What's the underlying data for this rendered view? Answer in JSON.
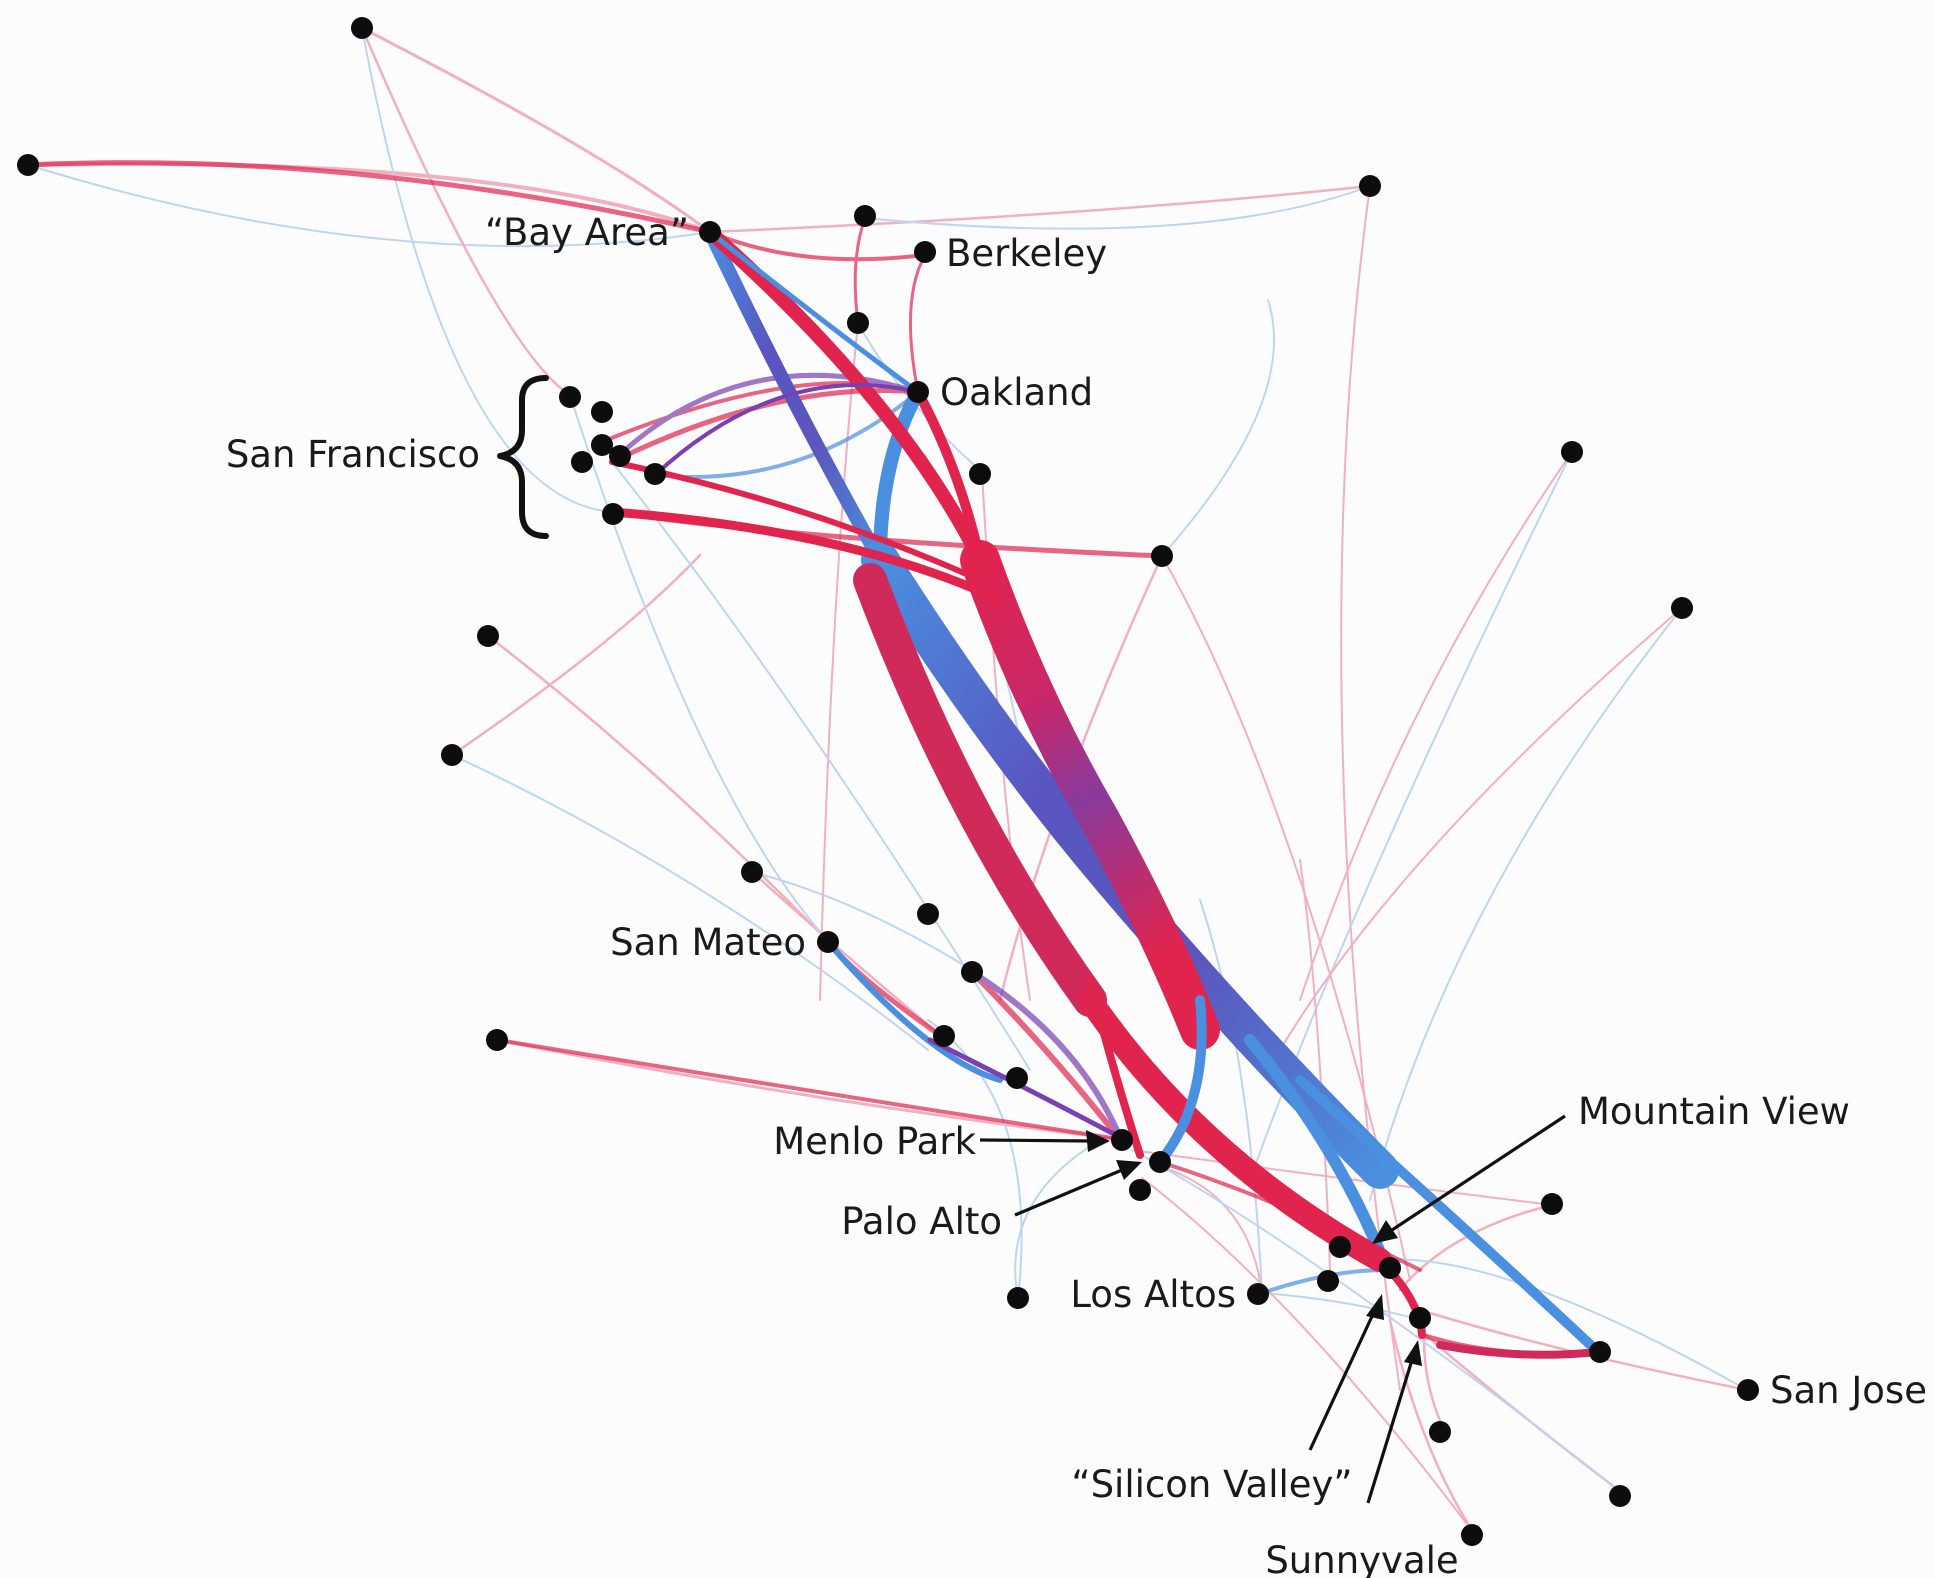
{
  "colors": {
    "red": "#e0244d",
    "blue": "#4a8fe0",
    "purple": "#7a3fb0",
    "node": "#0d0d0d",
    "text": "#1a1a1a",
    "background": "#fdfcfd"
  },
  "labels": {
    "bay_area": "“Bay Area”",
    "berkeley": "Berkeley",
    "oakland": "Oakland",
    "san_francisco": "San Francisco",
    "san_mateo": "San Mateo",
    "menlo_park": "Menlo Park",
    "palo_alto": "Palo Alto",
    "los_altos": "Los Altos",
    "mountain_view": "Mountain View",
    "silicon_valley": "“Silicon Valley”",
    "sunnyvale": "Sunnyvale",
    "san_jose": "San Jose"
  }
}
